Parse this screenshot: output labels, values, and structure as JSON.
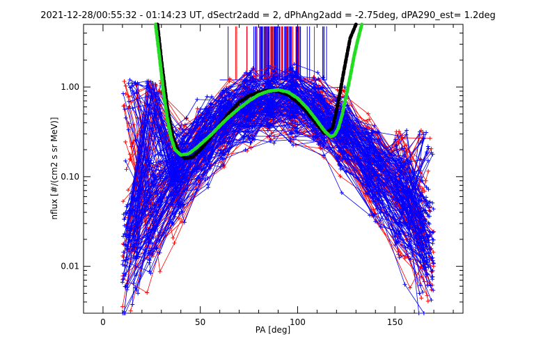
{
  "chart_data": {
    "type": "scatter",
    "title": "2021-12-28/00:55:32 - 01:14:23 UT, dSectr2add = 2, dPhAng2add = -2.75deg, dPA290_est=   1.2deg",
    "xlabel": "PA [deg]",
    "ylabel": "nflux [#/(cm2 s sr MeV)]",
    "xlim": [
      -10,
      185
    ],
    "ylim": [
      0.003,
      5
    ],
    "yscale": "log",
    "grid": false,
    "x_ticks": [
      0,
      50,
      100,
      150
    ],
    "x_tick_labels": [
      "0",
      "50",
      "100",
      "150"
    ],
    "y_ticks": [
      0.01,
      0.1,
      1.0
    ],
    "y_tick_labels": [
      "0.01",
      "0.10",
      "1.00"
    ],
    "colors": {
      "red": "#ff0000",
      "blue": "#0000ff",
      "black": "#000000",
      "green": "#22dd22"
    },
    "fit_black": {
      "x": [
        28,
        30,
        33,
        36,
        39,
        42,
        46,
        50,
        55,
        60,
        65,
        70,
        75,
        80,
        85,
        90,
        95,
        100,
        105,
        110,
        114,
        118,
        121,
        124,
        127,
        130
      ],
      "y": [
        5.0,
        2.0,
        0.6,
        0.27,
        0.185,
        0.16,
        0.165,
        0.2,
        0.27,
        0.38,
        0.52,
        0.68,
        0.8,
        0.88,
        0.92,
        0.9,
        0.82,
        0.68,
        0.52,
        0.38,
        0.3,
        0.35,
        0.7,
        1.6,
        3.5,
        5.0
      ]
    },
    "fit_green": {
      "x": [
        27,
        29,
        31,
        33,
        35,
        37,
        40,
        44,
        48,
        52,
        56,
        60,
        65,
        70,
        75,
        80,
        85,
        90,
        95,
        100,
        105,
        110,
        114,
        117,
        119,
        121,
        123,
        125,
        127,
        129,
        131,
        133
      ],
      "y": [
        5.0,
        2.2,
        0.9,
        0.45,
        0.27,
        0.2,
        0.175,
        0.18,
        0.21,
        0.25,
        0.3,
        0.37,
        0.47,
        0.58,
        0.7,
        0.82,
        0.9,
        0.93,
        0.88,
        0.75,
        0.58,
        0.42,
        0.32,
        0.28,
        0.29,
        0.35,
        0.5,
        0.8,
        1.3,
        2.2,
        3.4,
        5.0
      ]
    },
    "series": [
      {
        "color": "red"
      },
      {
        "color": "blue"
      }
    ],
    "peak_x": [
      90,
      96,
      103,
      110,
      118
    ]
  }
}
